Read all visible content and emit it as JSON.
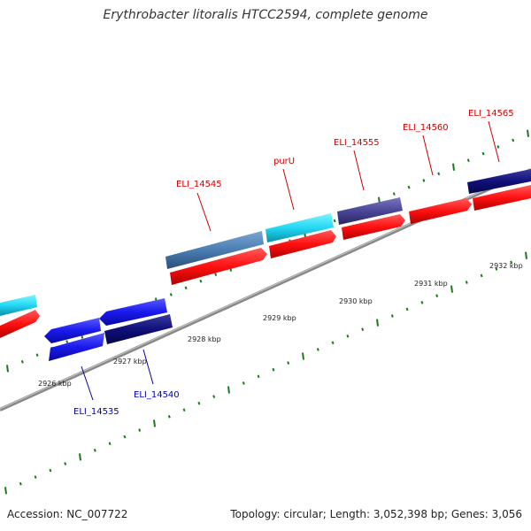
{
  "title": "Erythrobacter litoralis HTCC2594, complete genome",
  "footer": {
    "accession": "Accession: NC_007722",
    "stats": "Topology: circular; Length: 3,052,398 bp; Genes: 3,056"
  },
  "colors": {
    "forward_label": "#cc0000",
    "reverse_label": "#0000aa",
    "backbone": "#888888",
    "tick": "#1a7a1a"
  },
  "scale": {
    "ticks": [
      {
        "label": "2926 kbp"
      },
      {
        "label": "2927 kbp"
      },
      {
        "label": "2928 kbp"
      },
      {
        "label": "2929 kbp"
      },
      {
        "label": "2930 kbp"
      },
      {
        "label": "2931 kbp"
      },
      {
        "label": "2932 kbp"
      }
    ]
  },
  "forward_labels": [
    {
      "text": "ELI_14545"
    },
    {
      "text": "purU"
    },
    {
      "text": "ELI_14555"
    },
    {
      "text": "ELI_14560"
    },
    {
      "text": "ELI_14565"
    }
  ],
  "reverse_labels": [
    {
      "text": "ELI_14535"
    },
    {
      "text": "ELI_14540"
    }
  ]
}
